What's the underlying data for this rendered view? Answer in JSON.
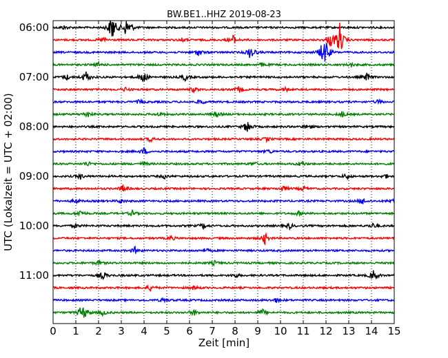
{
  "chart_data": {
    "type": "line",
    "title": "BW.BE1..HHZ 2019-08-23",
    "xlabel": "Zeit  [min]",
    "ylabel": "UTC (Lokalzeit = UTC + 02:00)",
    "xlim": [
      0,
      15
    ],
    "x_ticks": [
      "0",
      "1",
      "2",
      "3",
      "4",
      "5",
      "6",
      "7",
      "8",
      "9",
      "10",
      "11",
      "12",
      "13",
      "14",
      "15"
    ],
    "y_tick_labels": [
      "06:00",
      "07:00",
      "08:00",
      "09:00",
      "10:00",
      "11:00"
    ],
    "trace_interval_min": 15,
    "first_trace_start": "06:00",
    "colors_cycle": [
      "#000000",
      "#ff0000",
      "#0000ff",
      "#008000"
    ],
    "grid_x": "dotted",
    "traces": [
      {
        "start": "06:00",
        "events": [
          [
            0.5,
            3
          ],
          [
            2.6,
            22
          ],
          [
            3.2,
            12
          ],
          [
            3.4,
            5
          ]
        ]
      },
      {
        "start": "06:15",
        "events": [
          [
            2.2,
            4
          ],
          [
            5.7,
            3
          ],
          [
            7.9,
            8
          ],
          [
            12.6,
            26
          ],
          [
            12.2,
            10
          ]
        ]
      },
      {
        "start": "06:30",
        "events": [
          [
            6.4,
            5
          ],
          [
            8.7,
            12
          ],
          [
            12.0,
            18
          ],
          [
            11.8,
            8
          ]
        ]
      },
      {
        "start": "06:45",
        "events": [
          [
            2.0,
            3
          ],
          [
            9.2,
            3
          ],
          [
            13.1,
            3
          ]
        ]
      },
      {
        "start": "07:00",
        "events": [
          [
            0.6,
            4
          ],
          [
            1.45,
            9
          ],
          [
            3.95,
            10
          ],
          [
            5.8,
            5
          ],
          [
            13.8,
            6
          ]
        ]
      },
      {
        "start": "07:15",
        "events": [
          [
            3.2,
            3
          ],
          [
            6.2,
            4
          ],
          [
            8.2,
            5
          ],
          [
            10.2,
            3
          ]
        ]
      },
      {
        "start": "07:30",
        "events": [
          [
            3.8,
            3
          ],
          [
            6.5,
            4
          ],
          [
            14.3,
            3
          ]
        ]
      },
      {
        "start": "07:45",
        "events": [
          [
            1.5,
            5
          ],
          [
            4.7,
            3
          ],
          [
            7.2,
            4
          ],
          [
            12.7,
            4
          ]
        ]
      },
      {
        "start": "08:00",
        "events": [
          [
            8.55,
            10
          ],
          [
            11.2,
            5
          ]
        ]
      },
      {
        "start": "08:15",
        "events": [
          [
            4.3,
            4
          ],
          [
            9.4,
            3
          ]
        ]
      },
      {
        "start": "08:30",
        "events": [
          [
            4.0,
            5
          ],
          [
            9.5,
            3
          ]
        ]
      },
      {
        "start": "08:45",
        "events": [
          [
            1.5,
            4
          ],
          [
            4.0,
            3
          ],
          [
            8.8,
            3
          ],
          [
            10.9,
            4
          ]
        ]
      },
      {
        "start": "09:00",
        "events": [
          [
            1.2,
            4
          ],
          [
            4.9,
            3
          ],
          [
            12.9,
            4
          ],
          [
            14.6,
            3
          ]
        ]
      },
      {
        "start": "09:15",
        "events": [
          [
            3.1,
            6
          ],
          [
            10.1,
            5
          ],
          [
            11.0,
            3
          ]
        ]
      },
      {
        "start": "09:30",
        "events": [
          [
            1.0,
            3
          ],
          [
            3.0,
            3
          ],
          [
            13.6,
            5
          ],
          [
            14.9,
            4
          ]
        ]
      },
      {
        "start": "09:45",
        "events": [
          [
            1.2,
            5
          ],
          [
            3.5,
            4
          ],
          [
            10.8,
            3
          ]
        ]
      },
      {
        "start": "10:00",
        "events": [
          [
            1.0,
            3
          ],
          [
            6.6,
            4
          ],
          [
            10.4,
            4
          ],
          [
            14.1,
            4
          ]
        ]
      },
      {
        "start": "10:15",
        "events": [
          [
            9.3,
            9
          ],
          [
            5.2,
            3
          ]
        ]
      },
      {
        "start": "10:30",
        "events": [
          [
            3.6,
            5
          ],
          [
            6.7,
            3
          ]
        ]
      },
      {
        "start": "10:45",
        "events": [
          [
            2.0,
            3
          ],
          [
            7.1,
            3
          ]
        ]
      },
      {
        "start": "11:00",
        "events": [
          [
            2.2,
            6
          ],
          [
            14.1,
            9
          ],
          [
            8.0,
            3
          ]
        ]
      },
      {
        "start": "11:15",
        "events": [
          [
            4.3,
            5
          ],
          [
            6.2,
            3
          ]
        ]
      },
      {
        "start": "11:30",
        "events": [
          [
            4.9,
            4
          ],
          [
            9.8,
            3
          ]
        ]
      },
      {
        "start": "11:45",
        "events": [
          [
            1.2,
            6
          ],
          [
            1.4,
            8
          ],
          [
            2.2,
            4
          ],
          [
            6.2,
            4
          ],
          [
            9.2,
            5
          ]
        ]
      }
    ]
  }
}
